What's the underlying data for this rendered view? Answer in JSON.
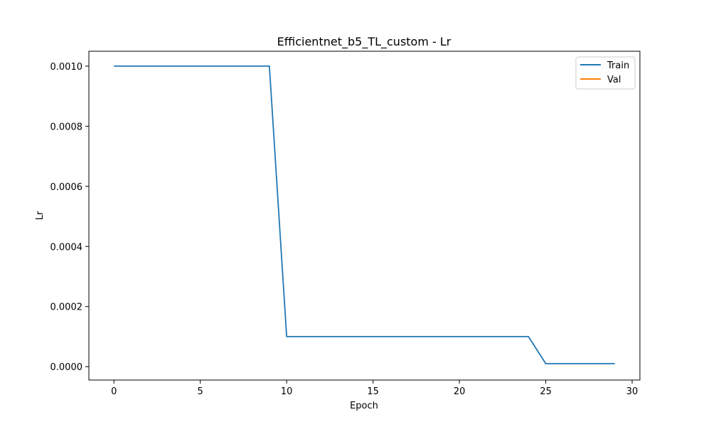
{
  "chart_data": {
    "type": "line",
    "title": "Efficientnet_b5_TL_custom - Lr",
    "xlabel": "Epoch",
    "ylabel": "Lr",
    "xlim": [
      -1.45,
      30.45
    ],
    "ylim": [
      -4.45e-05,
      0.0010495
    ],
    "xticks": [
      0,
      5,
      10,
      15,
      20,
      25,
      30
    ],
    "xtick_labels": [
      "0",
      "5",
      "10",
      "15",
      "20",
      "25",
      "30"
    ],
    "yticks": [
      0.0,
      0.0002,
      0.0004,
      0.0006,
      0.0008,
      0.001
    ],
    "ytick_labels": [
      "0.0000",
      "0.0002",
      "0.0004",
      "0.0006",
      "0.0008",
      "0.0010"
    ],
    "grid": false,
    "legend": "top-right",
    "series": [
      {
        "name": "Train",
        "color": "#1f77b4",
        "x": [
          0,
          1,
          2,
          3,
          4,
          5,
          6,
          7,
          8,
          9,
          10,
          11,
          12,
          13,
          14,
          15,
          16,
          17,
          18,
          19,
          20,
          21,
          22,
          23,
          24,
          25,
          26,
          27,
          28,
          29
        ],
        "values": [
          0.001,
          0.001,
          0.001,
          0.001,
          0.001,
          0.001,
          0.001,
          0.001,
          0.001,
          0.001,
          0.0001,
          0.0001,
          0.0001,
          0.0001,
          0.0001,
          0.0001,
          0.0001,
          0.0001,
          0.0001,
          0.0001,
          0.0001,
          0.0001,
          0.0001,
          0.0001,
          0.0001,
          1e-05,
          1e-05,
          1e-05,
          1e-05,
          1e-05
        ]
      },
      {
        "name": "Val",
        "color": "#ff7f0e",
        "x": [],
        "values": []
      }
    ]
  }
}
